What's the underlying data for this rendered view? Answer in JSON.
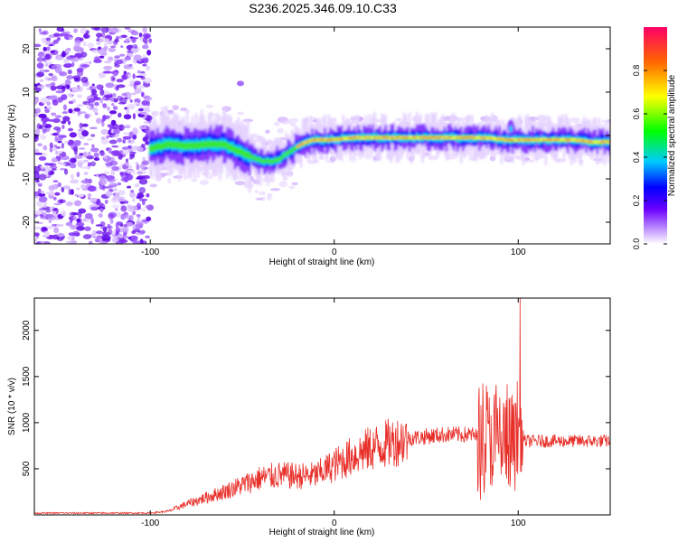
{
  "title": "S236.2025.346.09.10.C33",
  "chart_data": [
    {
      "type": "heatmap",
      "name": "spectrogram",
      "xlabel": "Height of straight line (km)",
      "ylabel": "Frequency (Hz)",
      "xlim": [
        -163,
        150
      ],
      "ylim": [
        -25,
        25
      ],
      "xticks": [
        -100,
        0,
        100
      ],
      "yticks": [
        -20,
        -10,
        0,
        10,
        20
      ],
      "colorbar": {
        "label": "Normalized spectral amplitude",
        "range": [
          0,
          1
        ],
        "ticks": [
          0.0,
          0.2,
          0.4,
          0.6,
          0.8
        ],
        "tick_labels": [
          "0.0",
          "0.2",
          "0.4",
          "0.6",
          "0.8"
        ]
      },
      "ridge": {
        "x": [
          -100,
          -90,
          -80,
          -70,
          -60,
          -50,
          -45,
          -40,
          -35,
          -30,
          -25,
          -20,
          -15,
          -10,
          -5,
          0,
          10,
          20,
          40,
          60,
          80,
          90,
          95,
          100,
          110,
          120,
          130,
          140,
          150
        ],
        "y": [
          -3.0,
          -2.0,
          -2.5,
          -2.0,
          -2.0,
          -4.0,
          -5.0,
          -5.8,
          -6.0,
          -5.5,
          -4.0,
          -2.5,
          -1.5,
          -1.0,
          -1.0,
          -1.0,
          -0.5,
          -0.5,
          -0.5,
          -0.5,
          -0.5,
          -0.8,
          -1.0,
          -1.0,
          -1.0,
          -1.0,
          -1.0,
          -1.5,
          -1.5
        ]
      }
    },
    {
      "type": "line",
      "name": "snr",
      "xlabel": "Height of straight line (km)",
      "ylabel": "SNR (10 * v/v)",
      "xlim": [
        -163,
        150
      ],
      "ylim": [
        0,
        2350
      ],
      "xticks": [
        -100,
        0,
        100
      ],
      "yticks": [
        500,
        1000,
        1500,
        2000
      ],
      "color": "#e8302a",
      "envelope": {
        "x": [
          -163,
          -100,
          -90,
          -80,
          -60,
          -40,
          -30,
          -20,
          -10,
          0,
          10,
          20,
          30,
          40,
          60,
          75,
          80,
          90,
          95,
          99,
          100,
          101,
          103,
          110,
          130,
          150
        ],
        "y": [
          20,
          20,
          40,
          120,
          250,
          400,
          430,
          420,
          430,
          540,
          640,
          720,
          780,
          830,
          870,
          870,
          820,
          800,
          760,
          720,
          1000,
          820,
          800,
          800,
          800,
          800
        ]
      },
      "peak": {
        "x": 101,
        "y": 2350
      }
    }
  ],
  "colors": {
    "line": "#e8302a",
    "axis": "#000000",
    "background": "#ffffff"
  }
}
